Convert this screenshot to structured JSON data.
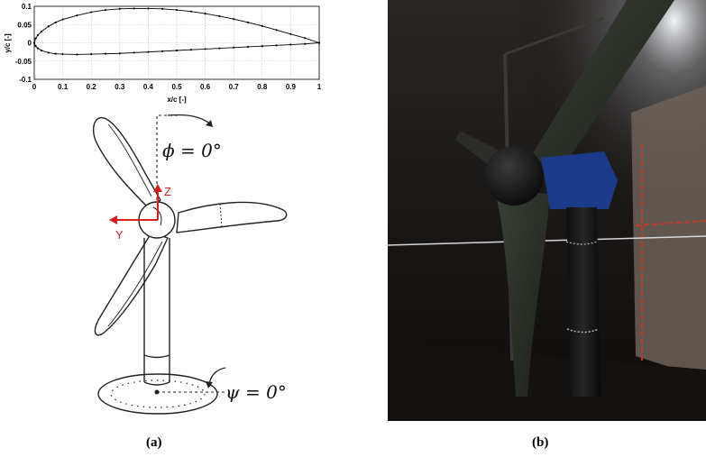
{
  "chart_data": {
    "type": "line",
    "xlabel": "x/c [-]",
    "ylabel": "y/c [-]",
    "xlim": [
      0,
      1
    ],
    "ylim": [
      -0.1,
      0.1
    ],
    "xticks": [
      "0",
      "0.1",
      "0.2",
      "0.3",
      "0.4",
      "0.5",
      "0.6",
      "0.7",
      "0.8",
      "0.9",
      "1"
    ],
    "yticks": [
      "0.1",
      "0.05",
      "0",
      "-0.05",
      "-0.1"
    ],
    "grid": true,
    "series": [
      {
        "x": [
          1.0,
          0.95,
          0.9,
          0.85,
          0.8,
          0.75,
          0.7,
          0.65,
          0.6,
          0.55,
          0.5,
          0.45,
          0.4,
          0.35,
          0.3,
          0.25,
          0.2,
          0.15,
          0.1,
          0.075,
          0.05,
          0.025,
          0.0125,
          0.005,
          0.0
        ],
        "y": [
          0.0,
          0.013,
          0.024,
          0.035,
          0.046,
          0.056,
          0.065,
          0.073,
          0.08,
          0.086,
          0.09,
          0.093,
          0.094,
          0.094,
          0.093,
          0.09,
          0.084,
          0.075,
          0.064,
          0.056,
          0.045,
          0.031,
          0.021,
          0.012,
          0.0
        ],
        "color": "#000000"
      },
      {
        "x": [
          0.0,
          0.005,
          0.0125,
          0.025,
          0.05,
          0.075,
          0.1,
          0.15,
          0.2,
          0.25,
          0.3,
          0.35,
          0.4,
          0.45,
          0.5,
          0.55,
          0.6,
          0.65,
          0.7,
          0.75,
          0.8,
          0.85,
          0.9,
          0.95,
          1.0
        ],
        "y": [
          0.0,
          -0.009,
          -0.015,
          -0.021,
          -0.027,
          -0.03,
          -0.031,
          -0.032,
          -0.031,
          -0.03,
          -0.029,
          -0.027,
          -0.025,
          -0.023,
          -0.021,
          -0.019,
          -0.017,
          -0.015,
          -0.013,
          -0.011,
          -0.009,
          -0.007,
          -0.005,
          -0.003,
          0.0
        ],
        "color": "#000000"
      }
    ]
  },
  "sketch": {
    "phi_label": "ϕ = 0°",
    "psi_label": "ψ = 0°",
    "z_label": "Z",
    "y_label": "Y",
    "axis_color": "#d62020"
  },
  "captions": {
    "a": "(a)",
    "b": "(b)"
  }
}
